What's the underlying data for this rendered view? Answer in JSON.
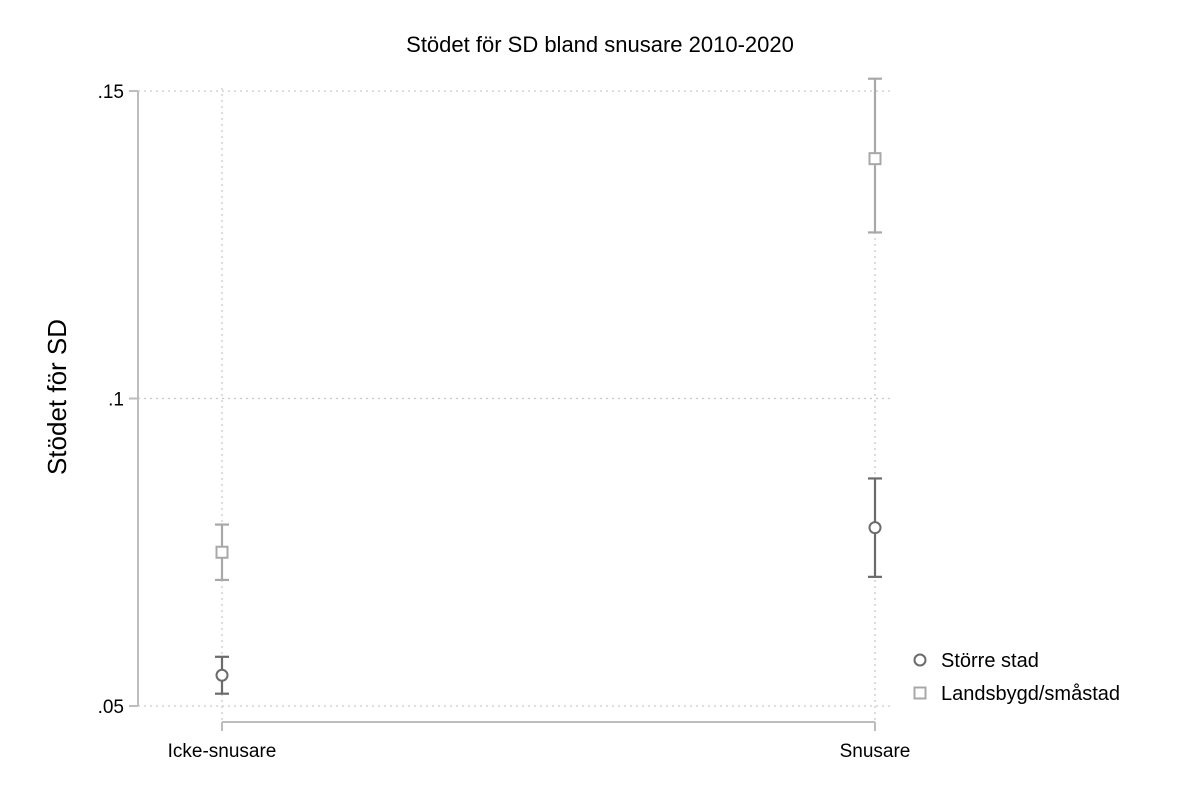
{
  "chart_data": {
    "type": "scatter",
    "title": "Stödet för SD bland snusare 2010-2020",
    "xlabel": "",
    "ylabel": "Stödet för SD",
    "categories": [
      "Icke-snusare",
      "Snusare"
    ],
    "ylim": [
      0.05,
      0.15
    ],
    "yticks": [
      {
        "value": 0.05,
        "label": ".05"
      },
      {
        "value": 0.1,
        "label": ".1"
      },
      {
        "value": 0.15,
        "label": ".15"
      }
    ],
    "grid": true,
    "legend": "right",
    "series": [
      {
        "name": "Större stad",
        "marker": "circle",
        "color": "#6b6b6b",
        "values": [
          0.055,
          0.079
        ],
        "ci_low": [
          0.052,
          0.071
        ],
        "ci_high": [
          0.058,
          0.087
        ]
      },
      {
        "name": "Landsbygd/småstad",
        "marker": "square",
        "color": "#a8a8a8",
        "values": [
          0.075,
          0.139
        ],
        "ci_low": [
          0.0705,
          0.127
        ],
        "ci_high": [
          0.0795,
          0.152
        ]
      }
    ]
  }
}
